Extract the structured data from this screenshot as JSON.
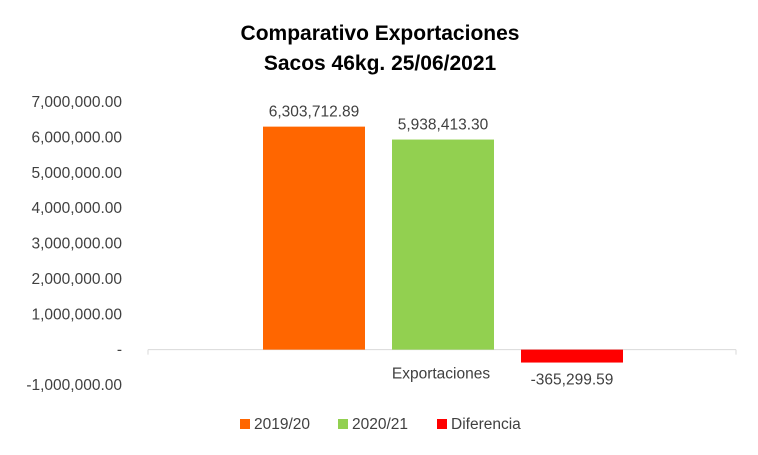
{
  "chart_data": {
    "type": "bar",
    "title": "Comparativo  Exportaciones",
    "subtitle": "Sacos 46kg. 25/06/2021",
    "categories": [
      "Exportaciones"
    ],
    "series": [
      {
        "name": "2019/20",
        "values": [
          6303712.89
        ],
        "color": "#FF6600",
        "label": "6,303,712.89"
      },
      {
        "name": "2020/21",
        "values": [
          5938413.3
        ],
        "color": "#92D050",
        "label": "5,938,413.30"
      },
      {
        "name": "Diferencia",
        "values": [
          -365299.59
        ],
        "color": "#FF0000",
        "label": "-365,299.59"
      }
    ],
    "ylim": [
      -1000000,
      7000000
    ],
    "y_ticks": [
      {
        "value": 7000000,
        "label": "7,000,000.00"
      },
      {
        "value": 6000000,
        "label": "6,000,000.00"
      },
      {
        "value": 5000000,
        "label": "5,000,000.00"
      },
      {
        "value": 4000000,
        "label": "4,000,000.00"
      },
      {
        "value": 3000000,
        "label": "3,000,000.00"
      },
      {
        "value": 2000000,
        "label": "2,000,000.00"
      },
      {
        "value": 1000000,
        "label": "1,000,000.00"
      },
      {
        "value": 0,
        "label": "-"
      },
      {
        "value": -1000000,
        "label": "-1,000,000.00"
      }
    ],
    "grid": false,
    "legend_position": "bottom"
  }
}
